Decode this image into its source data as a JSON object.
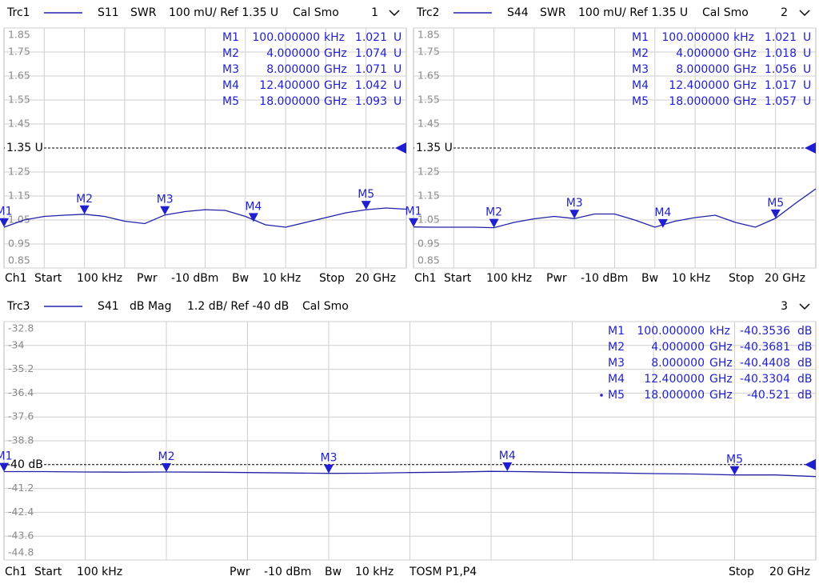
{
  "chart_data": [
    {
      "type": "line",
      "trace": "Trc1",
      "param": "S11",
      "format": "SWR",
      "scale": "100 mU/ Ref 1.35 U",
      "cal": "Cal Smo",
      "window": "1",
      "x": [
        0.0001,
        1,
        2,
        3,
        4,
        5,
        6,
        7,
        8,
        9,
        10,
        11,
        12,
        13,
        14,
        15,
        16,
        17,
        18,
        19,
        20
      ],
      "series": [
        {
          "name": "S11",
          "color": "#2020a8",
          "values": [
            1.02,
            1.05,
            1.065,
            1.07,
            1.074,
            1.065,
            1.045,
            1.035,
            1.071,
            1.085,
            1.093,
            1.09,
            1.065,
            1.03,
            1.02,
            1.04,
            1.06,
            1.08,
            1.093,
            1.1,
            1.095
          ]
        }
      ],
      "xlim": [
        0.0001,
        20
      ],
      "ylim": [
        0.85,
        1.85
      ],
      "yticks": [
        1.85,
        1.75,
        1.65,
        1.55,
        1.45,
        1.25,
        1.15,
        1.05,
        0.95,
        0.85
      ],
      "ref": {
        "value": 1.35,
        "label": "1.35 U"
      },
      "markers": [
        {
          "name": "M1",
          "x": 0.0001,
          "freq": "100.000000",
          "unit": "kHz",
          "value": 1.021,
          "value_unit": "U"
        },
        {
          "name": "M2",
          "x": 4,
          "freq": "4.000000",
          "unit": "GHz",
          "value": 1.074,
          "value_unit": "U"
        },
        {
          "name": "M3",
          "x": 8,
          "freq": "8.000000",
          "unit": "GHz",
          "value": 1.071,
          "value_unit": "U"
        },
        {
          "name": "M4",
          "x": 12.4,
          "freq": "12.400000",
          "unit": "GHz",
          "value": 1.042,
          "value_unit": "U"
        },
        {
          "name": "M5",
          "x": 18,
          "freq": "18.000000",
          "unit": "GHz",
          "value": 1.093,
          "value_unit": "U"
        }
      ],
      "footer": [
        "Ch1",
        "Start",
        "100 kHz",
        "Pwr",
        "-10 dBm",
        "Bw",
        "10 kHz",
        "Stop",
        "20 GHz"
      ]
    },
    {
      "type": "line",
      "trace": "Trc2",
      "param": "S44",
      "format": "SWR",
      "scale": "100 mU/ Ref 1.35 U",
      "cal": "Cal Smo",
      "window": "2",
      "x": [
        0.0001,
        1,
        2,
        3,
        4,
        5,
        6,
        7,
        8,
        9,
        10,
        11,
        12,
        13,
        14,
        15,
        16,
        17,
        18,
        19,
        20
      ],
      "series": [
        {
          "name": "S44",
          "color": "#2020a8",
          "values": [
            1.021,
            1.02,
            1.02,
            1.02,
            1.018,
            1.04,
            1.055,
            1.065,
            1.056,
            1.075,
            1.075,
            1.05,
            1.02,
            1.045,
            1.06,
            1.07,
            1.04,
            1.02,
            1.057,
            1.12,
            1.18
          ]
        }
      ],
      "xlim": [
        0.0001,
        20
      ],
      "ylim": [
        0.85,
        1.85
      ],
      "yticks": [
        1.85,
        1.75,
        1.65,
        1.55,
        1.45,
        1.25,
        1.15,
        1.05,
        0.95,
        0.85
      ],
      "ref": {
        "value": 1.35,
        "label": "1.35 U"
      },
      "markers": [
        {
          "name": "M1",
          "x": 0.0001,
          "freq": "100.000000",
          "unit": "kHz",
          "value": 1.021,
          "value_unit": "U"
        },
        {
          "name": "M2",
          "x": 4,
          "freq": "4.000000",
          "unit": "GHz",
          "value": 1.018,
          "value_unit": "U"
        },
        {
          "name": "M3",
          "x": 8,
          "freq": "8.000000",
          "unit": "GHz",
          "value": 1.056,
          "value_unit": "U"
        },
        {
          "name": "M4",
          "x": 12.4,
          "freq": "12.400000",
          "unit": "GHz",
          "value": 1.017,
          "value_unit": "U"
        },
        {
          "name": "M5",
          "x": 18,
          "freq": "18.000000",
          "unit": "GHz",
          "value": 1.057,
          "value_unit": "U"
        }
      ],
      "footer": [
        "Ch1",
        "Start",
        "100 kHz",
        "Pwr",
        "-10 dBm",
        "Bw",
        "10 kHz",
        "Stop",
        "20 GHz"
      ]
    },
    {
      "type": "line",
      "trace": "Trc3",
      "param": "S41",
      "format": "dB Mag",
      "scale": "1.2 dB/ Ref -40 dB",
      "cal": "Cal Smo",
      "window": "3",
      "x": [
        0.0001,
        1,
        2,
        3,
        4,
        5,
        6,
        7,
        8,
        9,
        10,
        11,
        12,
        13,
        14,
        15,
        16,
        17,
        18,
        19,
        20
      ],
      "series": [
        {
          "name": "S41",
          "color": "#2020a8",
          "values": [
            -40.35,
            -40.35,
            -40.37,
            -40.38,
            -40.37,
            -40.38,
            -40.4,
            -40.42,
            -40.44,
            -40.43,
            -40.4,
            -40.38,
            -40.34,
            -40.36,
            -40.4,
            -40.42,
            -40.45,
            -40.47,
            -40.52,
            -40.52,
            -40.6
          ]
        }
      ],
      "xlim": [
        0.0001,
        20
      ],
      "ylim": [
        -44.8,
        -32.8
      ],
      "yticks": [
        -32.8,
        -34,
        -35.2,
        -36.4,
        -37.6,
        -38.8,
        -41.2,
        -42.4,
        -43.6,
        -44.8
      ],
      "ref": {
        "value": -40,
        "label": "-40 dB"
      },
      "markers": [
        {
          "name": "M1",
          "x": 0.0001,
          "freq": "100.000000",
          "unit": "kHz",
          "value": -40.3536,
          "value_unit": "dB"
        },
        {
          "name": "M2",
          "x": 4,
          "freq": "4.000000",
          "unit": "GHz",
          "value": -40.3681,
          "value_unit": "dB"
        },
        {
          "name": "M3",
          "x": 8,
          "freq": "8.000000",
          "unit": "GHz",
          "value": -40.4408,
          "value_unit": "dB"
        },
        {
          "name": "M4",
          "x": 12.4,
          "freq": "12.400000",
          "unit": "GHz",
          "value": -40.3304,
          "value_unit": "dB"
        },
        {
          "name": "M5",
          "x": 18,
          "freq": "18.000000",
          "unit": "GHz",
          "value": -40.521,
          "value_unit": "dB"
        }
      ],
      "footer": [
        "Ch1",
        "Start",
        "100 kHz",
        "Pwr",
        "-10 dBm",
        "Bw",
        "10 kHz",
        "TOSM P1,P4",
        "Stop",
        "20 GHz"
      ]
    }
  ]
}
